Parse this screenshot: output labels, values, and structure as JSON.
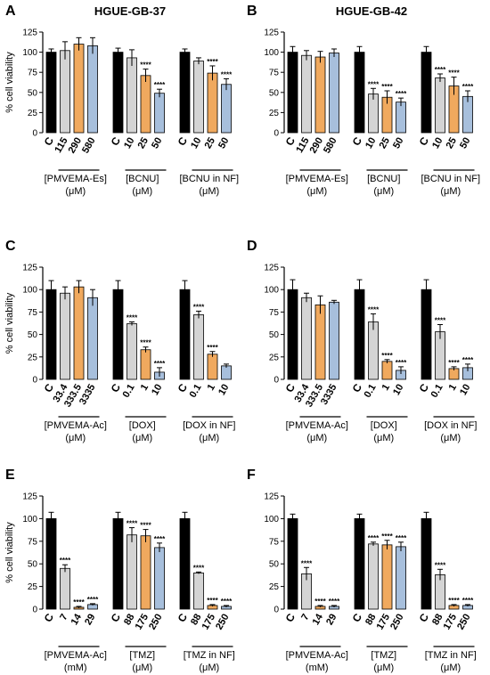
{
  "colors": {
    "control": "#000000",
    "polymer": "#d4d4d4",
    "drug": "#f0a95e",
    "nf": "#a7bfdc",
    "ink": "#000000"
  },
  "shared": {
    "ylabel": "% cell viability",
    "yticks": [
      "0",
      "25",
      "50",
      "75",
      "100",
      "125"
    ],
    "ylim": [
      0,
      125
    ],
    "sig": "****"
  },
  "chart_data": [
    {
      "type": "bar",
      "letter": "A",
      "title": "HGUE-GB-37",
      "groups": [
        {
          "categories": [
            "C",
            "115",
            "290",
            "580"
          ],
          "values": [
            100,
            102,
            110,
            108
          ],
          "errors": [
            4,
            11,
            8,
            10
          ],
          "sig": [
            false,
            false,
            false,
            false
          ],
          "label": "[PMVEMA-Es]",
          "unit": "(μM)"
        },
        {
          "categories": [
            "C",
            "10",
            "25",
            "50"
          ],
          "values": [
            100,
            93,
            71,
            49
          ],
          "errors": [
            5,
            10,
            8,
            5
          ],
          "sig": [
            false,
            false,
            true,
            true
          ],
          "label": "[BCNU]",
          "unit": "(μM)"
        },
        {
          "categories": [
            "C",
            "10",
            "25",
            "50"
          ],
          "values": [
            100,
            89,
            74,
            60
          ],
          "errors": [
            4,
            4,
            9,
            7
          ],
          "sig": [
            false,
            false,
            true,
            true
          ],
          "label": "[BCNU in NF]",
          "unit": "(μM)"
        }
      ]
    },
    {
      "type": "bar",
      "letter": "B",
      "title": "HGUE-GB-42",
      "groups": [
        {
          "categories": [
            "C",
            "115",
            "290",
            "580"
          ],
          "values": [
            100,
            96,
            94,
            99
          ],
          "errors": [
            7,
            6,
            7,
            5
          ],
          "sig": [
            false,
            false,
            false,
            false
          ],
          "label": "[PMVEMA-Es]",
          "unit": "(μM)"
        },
        {
          "categories": [
            "C",
            "10",
            "25",
            "50"
          ],
          "values": [
            100,
            48,
            44,
            38
          ],
          "errors": [
            7,
            7,
            8,
            5
          ],
          "sig": [
            false,
            true,
            true,
            true
          ],
          "label": "[BCNU]",
          "unit": "(μM)"
        },
        {
          "categories": [
            "C",
            "10",
            "25",
            "50"
          ],
          "values": [
            100,
            68,
            58,
            45
          ],
          "errors": [
            7,
            5,
            11,
            7
          ],
          "sig": [
            false,
            true,
            true,
            true
          ],
          "label": "[BCNU in NF]",
          "unit": "(μM)"
        }
      ]
    },
    {
      "type": "bar",
      "letter": "C",
      "title": "",
      "groups": [
        {
          "categories": [
            "C",
            "33.4",
            "333.5",
            "3335"
          ],
          "values": [
            100,
            96,
            103,
            91
          ],
          "errors": [
            10,
            7,
            7,
            9
          ],
          "sig": [
            false,
            false,
            false,
            false
          ],
          "label": "[PMVEMA-Ac]",
          "unit": "(μM)"
        },
        {
          "categories": [
            "C",
            "0.1",
            "1",
            "10"
          ],
          "values": [
            100,
            62,
            33,
            8
          ],
          "errors": [
            10,
            2,
            3,
            5
          ],
          "sig": [
            false,
            true,
            true,
            true
          ],
          "label": "[DOX]",
          "unit": "(μM)"
        },
        {
          "categories": [
            "C",
            "0.1",
            "1",
            "10"
          ],
          "values": [
            100,
            72,
            28,
            15
          ],
          "errors": [
            10,
            4,
            3,
            2
          ],
          "sig": [
            false,
            true,
            true,
            false
          ],
          "label": "[DOX in NF]",
          "unit": "(μM)"
        }
      ]
    },
    {
      "type": "bar",
      "letter": "D",
      "title": "",
      "groups": [
        {
          "categories": [
            "C",
            "33.4",
            "333.5",
            "3335"
          ],
          "values": [
            100,
            91,
            83,
            86
          ],
          "errors": [
            11,
            5,
            10,
            2
          ],
          "sig": [
            false,
            false,
            false,
            false
          ],
          "label": "[PMVEMA-Ac]",
          "unit": "(μM)"
        },
        {
          "categories": [
            "C",
            "0.1",
            "1",
            "10"
          ],
          "values": [
            100,
            64,
            20,
            10
          ],
          "errors": [
            11,
            9,
            2,
            4
          ],
          "sig": [
            false,
            true,
            true,
            true
          ],
          "label": "[DOX]",
          "unit": "(μM)"
        },
        {
          "categories": [
            "C",
            "0.1",
            "1",
            "10"
          ],
          "values": [
            100,
            53,
            12,
            13
          ],
          "errors": [
            11,
            8,
            2,
            4
          ],
          "sig": [
            false,
            true,
            true,
            true
          ],
          "label": "[DOX in NF]",
          "unit": "(μM)"
        }
      ]
    },
    {
      "type": "bar",
      "letter": "E",
      "title": "",
      "groups": [
        {
          "categories": [
            "C",
            "7",
            "14",
            "29"
          ],
          "values": [
            100,
            45,
            2,
            5
          ],
          "errors": [
            7,
            4,
            1,
            1
          ],
          "sig": [
            false,
            true,
            true,
            true
          ],
          "label": "[PMVEMA-Ac]",
          "unit": "(mM)"
        },
        {
          "categories": [
            "C",
            "88",
            "175",
            "250"
          ],
          "values": [
            100,
            82,
            81,
            68
          ],
          "errors": [
            7,
            8,
            7,
            5
          ],
          "sig": [
            false,
            true,
            true,
            true
          ],
          "label": "[TMZ]",
          "unit": "(μM)"
        },
        {
          "categories": [
            "C",
            "88",
            "175",
            "250"
          ],
          "values": [
            100,
            40,
            4,
            3
          ],
          "errors": [
            7,
            1,
            1,
            1
          ],
          "sig": [
            false,
            true,
            true,
            true
          ],
          "label": "[TMZ in NF]",
          "unit": "(μM)"
        }
      ]
    },
    {
      "type": "bar",
      "letter": "F",
      "title": "",
      "groups": [
        {
          "categories": [
            "C",
            "7",
            "14",
            "29"
          ],
          "values": [
            100,
            39,
            3,
            3
          ],
          "errors": [
            5,
            7,
            1,
            1
          ],
          "sig": [
            false,
            true,
            true,
            true
          ],
          "label": "[PMVEMA-Ac]",
          "unit": "(mM)"
        },
        {
          "categories": [
            "C",
            "88",
            "175",
            "250"
          ],
          "values": [
            100,
            72,
            71,
            69
          ],
          "errors": [
            5,
            2,
            5,
            5
          ],
          "sig": [
            false,
            true,
            true,
            true
          ],
          "label": "[TMZ]",
          "unit": "(μM)"
        },
        {
          "categories": [
            "C",
            "88",
            "175",
            "250"
          ],
          "values": [
            100,
            38,
            4,
            4
          ],
          "errors": [
            7,
            6,
            1,
            1
          ],
          "sig": [
            false,
            true,
            true,
            true
          ],
          "label": "[TMZ in NF]",
          "unit": "(μM)"
        }
      ]
    }
  ]
}
